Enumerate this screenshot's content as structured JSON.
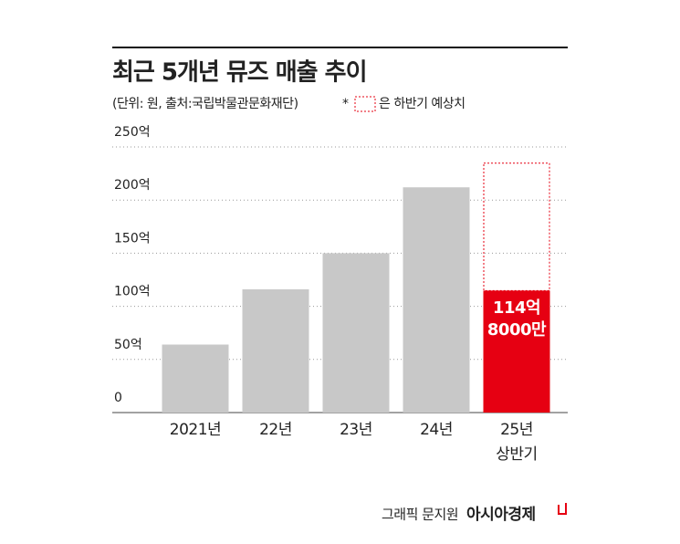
{
  "chart_data": {
    "type": "bar",
    "title": "최근 5개년 뮤즈 매출 추이",
    "subtitle": "(단위: 원, 출처:국립박물관문화재단)",
    "legend_note": {
      "marker": "*",
      "label": "은 하반기 예상치"
    },
    "categories": [
      "2021년",
      "22년",
      "23년",
      "24년",
      "25년\n상반기"
    ],
    "values": [
      64,
      116,
      150,
      212,
      114.8
    ],
    "colors": [
      "#c8c8c8",
      "#c8c8c8",
      "#c8c8c8",
      "#c8c8c8",
      "#e60012"
    ],
    "value_labels": [
      null,
      null,
      null,
      null,
      "114억\n8000만"
    ],
    "projected_values": [
      null,
      null,
      null,
      null,
      120
    ],
    "projected_color": "#e60012",
    "ylim": [
      0,
      250
    ],
    "yticks": [
      0,
      {
        "value": 50,
        "label": "50억"
      },
      {
        "value": 100,
        "label": "100억"
      },
      {
        "value": 150,
        "label": "150억"
      },
      {
        "value": 200,
        "label": "200억"
      },
      {
        "value": 250,
        "label": "250억"
      }
    ],
    "grid": true,
    "credit": "그래픽 문지원",
    "brand": "아시아경제"
  }
}
